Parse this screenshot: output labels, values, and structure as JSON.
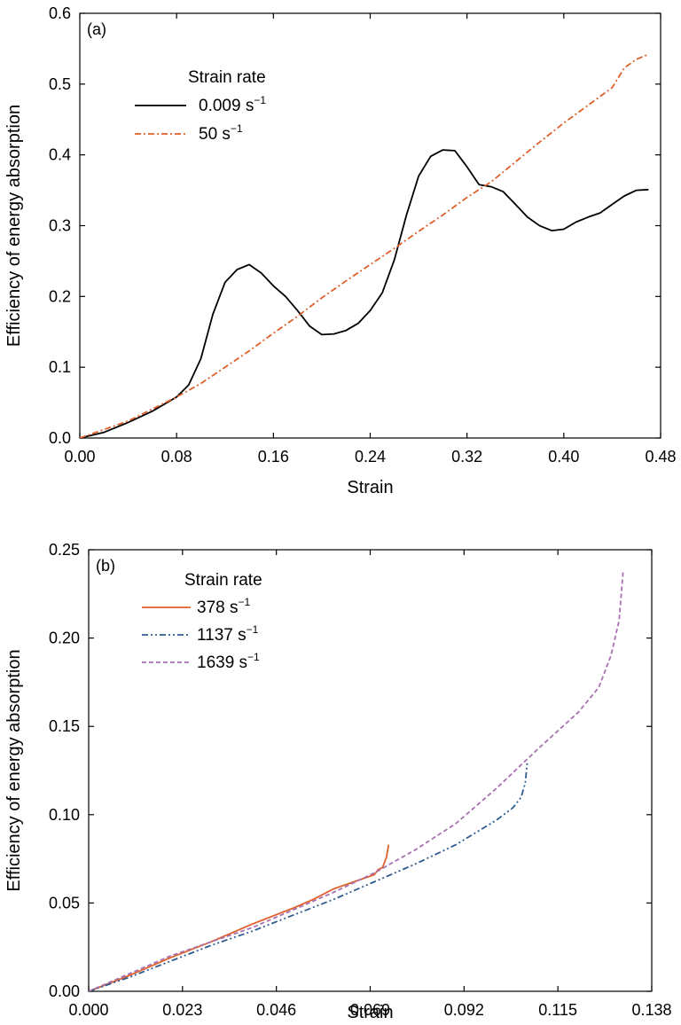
{
  "chart_data": [
    {
      "type": "line",
      "panel_label": "(a)",
      "xlabel": "Strain",
      "ylabel": "Efficiency of energy absorption",
      "xlim": [
        0,
        0.48
      ],
      "ylim": [
        0,
        0.6
      ],
      "x_ticks": [
        "0.00",
        "0.08",
        "0.16",
        "0.24",
        "0.32",
        "0.40",
        "0.48"
      ],
      "y_ticks": [
        "0.0",
        "0.1",
        "0.2",
        "0.3",
        "0.4",
        "0.5",
        "0.6"
      ],
      "legend": {
        "title": "Strain rate",
        "placement": "top-left"
      },
      "series": [
        {
          "name": "0.009 s",
          "name_sup": "−1",
          "color": "#000000",
          "dash": "solid",
          "points": [
            [
              0,
              0
            ],
            [
              0.02,
              0.008
            ],
            [
              0.04,
              0.022
            ],
            [
              0.06,
              0.038
            ],
            [
              0.08,
              0.058
            ],
            [
              0.09,
              0.075
            ],
            [
              0.1,
              0.112
            ],
            [
              0.11,
              0.175
            ],
            [
              0.12,
              0.22
            ],
            [
              0.13,
              0.238
            ],
            [
              0.14,
              0.245
            ],
            [
              0.15,
              0.233
            ],
            [
              0.16,
              0.215
            ],
            [
              0.17,
              0.2
            ],
            [
              0.18,
              0.18
            ],
            [
              0.19,
              0.158
            ],
            [
              0.2,
              0.146
            ],
            [
              0.21,
              0.147
            ],
            [
              0.22,
              0.152
            ],
            [
              0.23,
              0.162
            ],
            [
              0.24,
              0.18
            ],
            [
              0.25,
              0.205
            ],
            [
              0.26,
              0.252
            ],
            [
              0.27,
              0.315
            ],
            [
              0.28,
              0.37
            ],
            [
              0.29,
              0.398
            ],
            [
              0.3,
              0.407
            ],
            [
              0.31,
              0.406
            ],
            [
              0.32,
              0.383
            ],
            [
              0.33,
              0.358
            ],
            [
              0.34,
              0.355
            ],
            [
              0.35,
              0.348
            ],
            [
              0.36,
              0.33
            ],
            [
              0.37,
              0.312
            ],
            [
              0.38,
              0.3
            ],
            [
              0.39,
              0.293
            ],
            [
              0.4,
              0.295
            ],
            [
              0.41,
              0.305
            ],
            [
              0.42,
              0.312
            ],
            [
              0.43,
              0.318
            ],
            [
              0.44,
              0.33
            ],
            [
              0.45,
              0.342
            ],
            [
              0.46,
              0.35
            ],
            [
              0.47,
              0.351
            ]
          ]
        },
        {
          "name": "50 s",
          "name_sup": "−1",
          "color": "#e0602c",
          "dash": "dashdot",
          "points": [
            [
              0,
              0
            ],
            [
              0.04,
              0.024
            ],
            [
              0.08,
              0.058
            ],
            [
              0.1,
              0.077
            ],
            [
              0.12,
              0.1
            ],
            [
              0.14,
              0.123
            ],
            [
              0.16,
              0.148
            ],
            [
              0.18,
              0.172
            ],
            [
              0.2,
              0.198
            ],
            [
              0.22,
              0.222
            ],
            [
              0.24,
              0.245
            ],
            [
              0.26,
              0.268
            ],
            [
              0.28,
              0.292
            ],
            [
              0.3,
              0.315
            ],
            [
              0.32,
              0.34
            ],
            [
              0.34,
              0.362
            ],
            [
              0.36,
              0.39
            ],
            [
              0.38,
              0.418
            ],
            [
              0.4,
              0.445
            ],
            [
              0.42,
              0.47
            ],
            [
              0.44,
              0.495
            ],
            [
              0.45,
              0.523
            ],
            [
              0.46,
              0.535
            ],
            [
              0.47,
              0.542
            ]
          ]
        }
      ]
    },
    {
      "type": "line",
      "panel_label": "(b)",
      "xlabel": "Strain",
      "ylabel": "Efficiency of energy absorption",
      "xlim": [
        0,
        0.138
      ],
      "ylim": [
        0,
        0.25
      ],
      "x_ticks": [
        "0.000",
        "0.023",
        "0.046",
        "0.069",
        "0.092",
        "0.115",
        "0.138"
      ],
      "y_ticks": [
        "0.00",
        "0.05",
        "0.10",
        "0.15",
        "0.20",
        "0.25"
      ],
      "legend": {
        "title": "Strain rate",
        "placement": "top-left"
      },
      "series": [
        {
          "name": "378 s",
          "name_sup": "−1",
          "color": "#e0602c",
          "dash": "solid",
          "points": [
            [
              0,
              0
            ],
            [
              0.01,
              0.009
            ],
            [
              0.02,
              0.019
            ],
            [
              0.03,
              0.028
            ],
            [
              0.04,
              0.038
            ],
            [
              0.05,
              0.047
            ],
            [
              0.055,
              0.052
            ],
            [
              0.06,
              0.058
            ],
            [
              0.065,
              0.062
            ],
            [
              0.07,
              0.066
            ],
            [
              0.071,
              0.069
            ],
            [
              0.072,
              0.07
            ],
            [
              0.073,
              0.076
            ],
            [
              0.0735,
              0.083
            ]
          ]
        },
        {
          "name": "1137 s",
          "name_sup": "−1",
          "color": "#2f5c8f",
          "dash": "dashdotdot",
          "points": [
            [
              0,
              0
            ],
            [
              0.01,
              0.008
            ],
            [
              0.02,
              0.017
            ],
            [
              0.03,
              0.026
            ],
            [
              0.04,
              0.034
            ],
            [
              0.05,
              0.043
            ],
            [
              0.06,
              0.052
            ],
            [
              0.07,
              0.062
            ],
            [
              0.08,
              0.072
            ],
            [
              0.09,
              0.083
            ],
            [
              0.1,
              0.097
            ],
            [
              0.104,
              0.104
            ],
            [
              0.106,
              0.11
            ],
            [
              0.107,
              0.118
            ],
            [
              0.1075,
              0.13
            ]
          ]
        },
        {
          "name": "1639 s",
          "name_sup": "−1",
          "color": "#a872b0",
          "dash": "dashed",
          "points": [
            [
              0,
              0
            ],
            [
              0.01,
              0.01
            ],
            [
              0.02,
              0.02
            ],
            [
              0.03,
              0.028
            ],
            [
              0.04,
              0.036
            ],
            [
              0.05,
              0.046
            ],
            [
              0.06,
              0.056
            ],
            [
              0.07,
              0.067
            ],
            [
              0.08,
              0.08
            ],
            [
              0.09,
              0.095
            ],
            [
              0.1,
              0.115
            ],
            [
              0.11,
              0.137
            ],
            [
              0.12,
              0.158
            ],
            [
              0.125,
              0.172
            ],
            [
              0.128,
              0.19
            ],
            [
              0.13,
              0.21
            ],
            [
              0.131,
              0.238
            ]
          ]
        }
      ]
    }
  ]
}
